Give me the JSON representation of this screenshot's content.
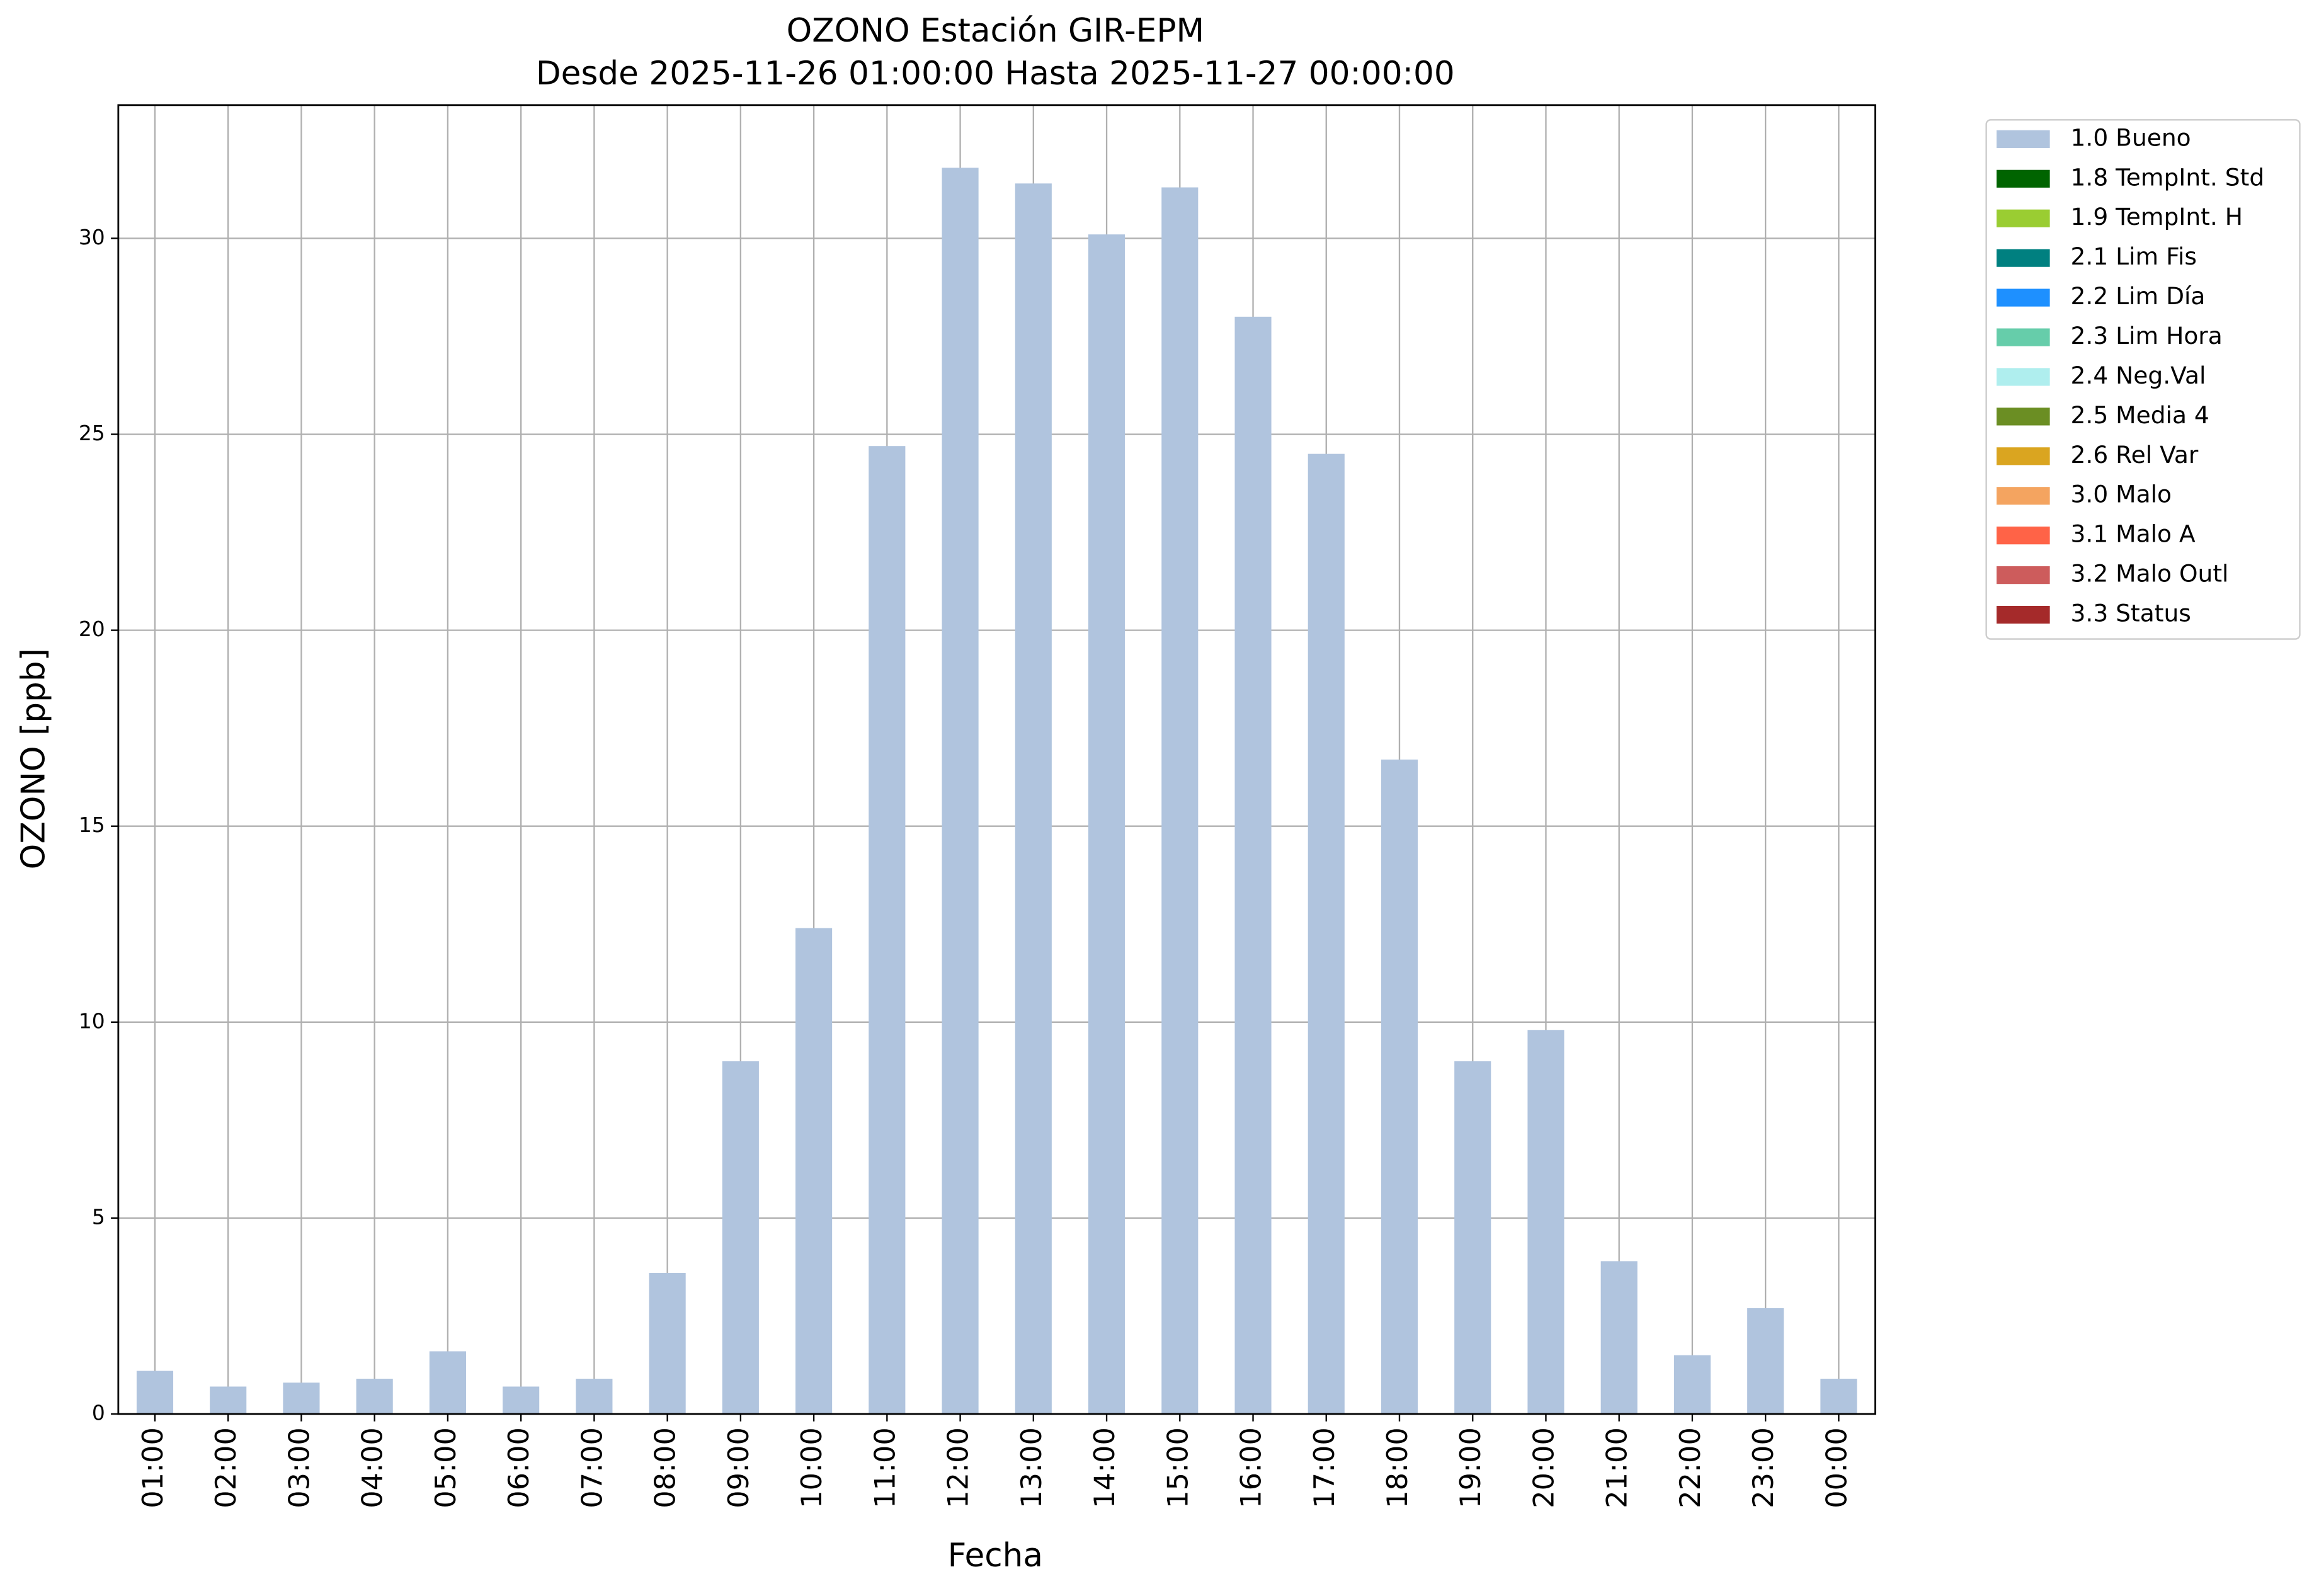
{
  "chart_data": {
    "type": "bar",
    "stacked": true,
    "title": "OZONO Estación GIR-EPM",
    "subtitle": "Desde 2025-11-26 01:00:00 Hasta 2025-11-27 00:00:00",
    "x_label": "Fecha",
    "y_label": "OZONO [ppb]",
    "categories": [
      "01:00",
      "02:00",
      "03:00",
      "04:00",
      "05:00",
      "06:00",
      "07:00",
      "08:00",
      "09:00",
      "10:00",
      "11:00",
      "12:00",
      "13:00",
      "14:00",
      "15:00",
      "16:00",
      "17:00",
      "18:00",
      "19:00",
      "20:00",
      "21:00",
      "22:00",
      "23:00",
      "00:00"
    ],
    "series": [
      {
        "name": "1.0 Bueno",
        "color": "#b0c4de",
        "values": [
          1.1,
          0.7,
          0.8,
          0.9,
          1.6,
          0.7,
          0.9,
          3.6,
          9.0,
          12.4,
          24.7,
          31.8,
          31.4,
          30.1,
          31.3,
          28.0,
          24.5,
          16.7,
          9.0,
          9.8,
          3.9,
          1.5,
          2.7,
          0.9
        ]
      },
      {
        "name": "1.8 TempInt. Std",
        "color": "#006400",
        "values": [
          0,
          0,
          0,
          0,
          0,
          0,
          0,
          0,
          0,
          0,
          0,
          0,
          0,
          0,
          0,
          0,
          0,
          0,
          0,
          0,
          0,
          0,
          0,
          0
        ]
      },
      {
        "name": "1.9 TempInt. H",
        "color": "#9acd32",
        "values": [
          0,
          0,
          0,
          0,
          0,
          0,
          0,
          0,
          0,
          0,
          0,
          0,
          0,
          0,
          0,
          0,
          0,
          0,
          0,
          0,
          0,
          0,
          0,
          0
        ]
      },
      {
        "name": "2.1 Lim Fis",
        "color": "#008080",
        "values": [
          0,
          0,
          0,
          0,
          0,
          0,
          0,
          0,
          0,
          0,
          0,
          0,
          0,
          0,
          0,
          0,
          0,
          0,
          0,
          0,
          0,
          0,
          0,
          0
        ]
      },
      {
        "name": "2.2 Lim Día",
        "color": "#1e90ff",
        "values": [
          0,
          0,
          0,
          0,
          0,
          0,
          0,
          0,
          0,
          0,
          0,
          0,
          0,
          0,
          0,
          0,
          0,
          0,
          0,
          0,
          0,
          0,
          0,
          0
        ]
      },
      {
        "name": "2.3 Lim Hora",
        "color": "#66cdaa",
        "values": [
          0,
          0,
          0,
          0,
          0,
          0,
          0,
          0,
          0,
          0,
          0,
          0,
          0,
          0,
          0,
          0,
          0,
          0,
          0,
          0,
          0,
          0,
          0,
          0
        ]
      },
      {
        "name": "2.4 Neg.Val",
        "color": "#afeeee",
        "values": [
          0,
          0,
          0,
          0,
          0,
          0,
          0,
          0,
          0,
          0,
          0,
          0,
          0,
          0,
          0,
          0,
          0,
          0,
          0,
          0,
          0,
          0,
          0,
          0
        ]
      },
      {
        "name": "2.5 Media 4",
        "color": "#6b8e23",
        "values": [
          0,
          0,
          0,
          0,
          0,
          0,
          0,
          0,
          0,
          0,
          0,
          0,
          0,
          0,
          0,
          0,
          0,
          0,
          0,
          0,
          0,
          0,
          0,
          0
        ]
      },
      {
        "name": "2.6 Rel Var",
        "color": "#daa520",
        "values": [
          0,
          0,
          0,
          0,
          0,
          0,
          0,
          0,
          0,
          0,
          0,
          0,
          0,
          0,
          0,
          0,
          0,
          0,
          0,
          0,
          0,
          0,
          0,
          0
        ]
      },
      {
        "name": "3.0 Malo",
        "color": "#f4a460",
        "values": [
          0,
          0,
          0,
          0,
          0,
          0,
          0,
          0,
          0,
          0,
          0,
          0,
          0,
          0,
          0,
          0,
          0,
          0,
          0,
          0,
          0,
          0,
          0,
          0
        ]
      },
      {
        "name": "3.1 Malo A",
        "color": "#ff6347",
        "values": [
          0,
          0,
          0,
          0,
          0,
          0,
          0,
          0,
          0,
          0,
          0,
          0,
          0,
          0,
          0,
          0,
          0,
          0,
          0,
          0,
          0,
          0,
          0,
          0
        ]
      },
      {
        "name": "3.2 Malo Outl",
        "color": "#cd5c5c",
        "values": [
          0,
          0,
          0,
          0,
          0,
          0,
          0,
          0,
          0,
          0,
          0,
          0,
          0,
          0,
          0,
          0,
          0,
          0,
          0,
          0,
          0,
          0,
          0,
          0
        ]
      },
      {
        "name": "3.3 Status",
        "color": "#a52a2a",
        "values": [
          0,
          0,
          0,
          0,
          0,
          0,
          0,
          0,
          0,
          0,
          0,
          0,
          0,
          0,
          0,
          0,
          0,
          0,
          0,
          0,
          0,
          0,
          0,
          0
        ]
      }
    ],
    "ylim": [
      0,
      33.4
    ],
    "yticks": [
      0,
      5,
      10,
      15,
      20,
      25,
      30
    ],
    "grid": true,
    "legend": "outside-upper-right"
  }
}
